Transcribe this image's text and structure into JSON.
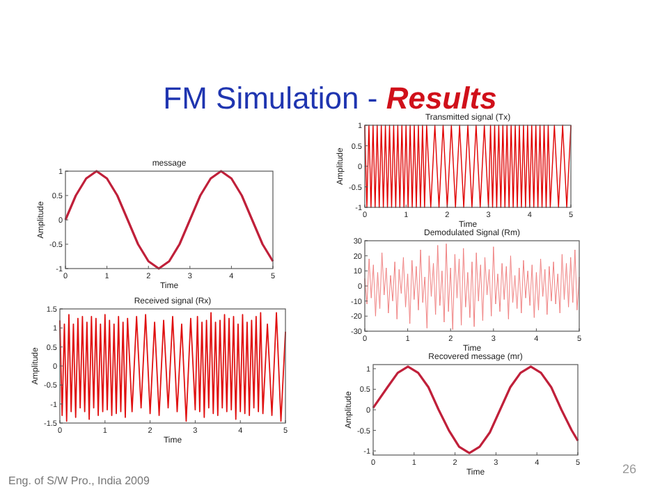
{
  "chart_data": [
    {
      "type": "other",
      "title": "FM Simulation - Results",
      "annotations": [
        "Eng. of S/W Pro., India 2009",
        "26"
      ]
    },
    {
      "type": "line",
      "title": "message",
      "xlabel": "Time",
      "ylabel": "Amplitude",
      "xlim": [
        0,
        5
      ],
      "xticks": [
        0,
        1,
        2,
        3,
        4,
        5
      ],
      "ylim": [
        -1,
        1
      ],
      "yticks": [
        -1,
        -0.5,
        0,
        0.5,
        1
      ],
      "grid": false,
      "x": [
        0,
        0.25,
        0.5,
        0.75,
        1,
        1.25,
        1.5,
        1.75,
        2,
        2.25,
        2.5,
        2.75,
        3,
        3.25,
        3.5,
        3.75,
        4,
        4.25,
        4.5,
        4.75,
        5
      ],
      "series": [
        {
          "color": "#c0203a",
          "values": [
            0,
            0.5,
            0.85,
            1,
            0.85,
            0.5,
            0,
            -0.5,
            -0.85,
            -1,
            -0.85,
            -0.5,
            0,
            0.5,
            0.85,
            1,
            0.85,
            0.5,
            0,
            -0.5,
            -0.85
          ]
        }
      ]
    },
    {
      "type": "line",
      "title": "Received signal (Rx)",
      "xlabel": "Time",
      "ylabel": "Amplitude",
      "xlim": [
        0,
        5
      ],
      "xticks": [
        0,
        1,
        2,
        3,
        4,
        5
      ],
      "ylim": [
        -1.5,
        1.5
      ],
      "yticks": [
        -1.5,
        -1,
        -0.5,
        0,
        0.5,
        1,
        1.5
      ],
      "grid": false,
      "x": [
        0,
        0.05,
        0.1,
        0.15,
        0.2,
        0.25,
        0.3,
        0.35,
        0.4,
        0.45,
        0.5,
        0.55,
        0.6,
        0.65,
        0.7,
        0.75,
        0.8,
        0.85,
        0.9,
        0.95,
        1,
        1.05,
        1.1,
        1.15,
        1.2,
        1.25,
        1.3,
        1.35,
        1.4,
        1.45,
        1.5,
        1.6,
        1.7,
        1.8,
        1.9,
        2,
        2.1,
        2.2,
        2.3,
        2.4,
        2.5,
        2.6,
        2.7,
        2.8,
        2.9,
        3,
        3.05,
        3.1,
        3.15,
        3.2,
        3.25,
        3.3,
        3.35,
        3.4,
        3.45,
        3.5,
        3.55,
        3.6,
        3.65,
        3.7,
        3.75,
        3.8,
        3.85,
        3.9,
        3.95,
        4,
        4.05,
        4.1,
        4.15,
        4.2,
        4.25,
        4.3,
        4.35,
        4.4,
        4.45,
        4.5,
        4.6,
        4.7,
        4.8,
        4.9,
        5
      ],
      "series": [
        {
          "color": "#e01010",
          "values": [
            1.2,
            -1.3,
            1.1,
            -1.45,
            1.35,
            -1.2,
            1.1,
            -1.35,
            1.25,
            -1.1,
            1.3,
            -1.2,
            1.15,
            -1.4,
            1.3,
            -1.1,
            1.25,
            -1.3,
            1.1,
            -1.2,
            1.35,
            -1.15,
            1.2,
            -1.3,
            1.1,
            -1.25,
            1.3,
            -1.2,
            1.15,
            -1.35,
            1.25,
            -1.2,
            1.3,
            -1.1,
            1.35,
            -1.25,
            1.15,
            -1.3,
            1.2,
            -1.1,
            1.3,
            -1.2,
            1.1,
            -1.45,
            1.25,
            -1.15,
            1.3,
            -1.2,
            1.15,
            -1.35,
            1.2,
            -1.1,
            1.4,
            -1.25,
            1.15,
            -1.3,
            1.2,
            -1.1,
            1.35,
            -1.2,
            1.25,
            -1.15,
            1.3,
            -1.4,
            1.1,
            -1.2,
            1.35,
            -1.25,
            1.15,
            -1.3,
            1.2,
            -1.1,
            1.3,
            -1.2,
            1.4,
            -1.25,
            1.1,
            -1.3,
            1.4,
            -1.45,
            0.9
          ]
        }
      ]
    },
    {
      "type": "line",
      "title": "Transmitted signal (Tx)",
      "xlabel": "Time",
      "ylabel": "Amplitude",
      "xlim": [
        0,
        5
      ],
      "xticks": [
        0,
        1,
        2,
        3,
        4,
        5
      ],
      "ylim": [
        -1,
        1
      ],
      "yticks": [
        -1,
        -0.5,
        0,
        0.5,
        1
      ],
      "grid": false,
      "x": [
        0,
        0.05,
        0.1,
        0.15,
        0.2,
        0.25,
        0.3,
        0.35,
        0.4,
        0.45,
        0.5,
        0.55,
        0.6,
        0.65,
        0.7,
        0.75,
        0.8,
        0.85,
        0.9,
        0.95,
        1,
        1.05,
        1.1,
        1.15,
        1.2,
        1.25,
        1.3,
        1.35,
        1.4,
        1.45,
        1.5,
        1.6,
        1.7,
        1.8,
        1.9,
        2,
        2.1,
        2.2,
        2.3,
        2.4,
        2.5,
        2.6,
        2.7,
        2.8,
        2.9,
        3,
        3.05,
        3.1,
        3.15,
        3.2,
        3.25,
        3.3,
        3.35,
        3.4,
        3.45,
        3.5,
        3.55,
        3.6,
        3.65,
        3.7,
        3.75,
        3.8,
        3.85,
        3.9,
        3.95,
        4,
        4.05,
        4.1,
        4.15,
        4.2,
        4.25,
        4.3,
        4.35,
        4.4,
        4.45,
        4.5,
        4.6,
        4.7,
        4.8,
        4.9,
        5
      ],
      "series": [
        {
          "color": "#e00000",
          "values": [
            1,
            -1,
            1,
            -1,
            1,
            -1,
            1,
            -1,
            1,
            -1,
            1,
            -1,
            1,
            -1,
            1,
            -1,
            1,
            -1,
            1,
            -1,
            1,
            -1,
            1,
            -1,
            1,
            -1,
            1,
            -1,
            1,
            -1,
            1,
            -1,
            1,
            -1,
            1,
            -1,
            1,
            -1,
            1,
            -1,
            1,
            -1,
            1,
            -1,
            1,
            -1,
            1,
            -1,
            1,
            -1,
            1,
            -1,
            1,
            -1,
            1,
            -1,
            1,
            -1,
            1,
            -1,
            1,
            -1,
            1,
            -1,
            1,
            -1,
            1,
            -1,
            1,
            -1,
            1,
            -1,
            1,
            -1,
            1,
            -1,
            1,
            -1,
            1,
            -1,
            1
          ]
        }
      ]
    },
    {
      "type": "line",
      "title": "Demodulated Signal (Rm)",
      "xlabel": "Time",
      "xlim": [
        0,
        5
      ],
      "xticks": [
        0,
        1,
        2,
        3,
        4,
        5
      ],
      "ylim": [
        -30,
        30
      ],
      "yticks": [
        -30,
        -20,
        -10,
        0,
        10,
        20,
        30
      ],
      "grid": false,
      "x": [
        0,
        0.05,
        0.1,
        0.15,
        0.2,
        0.25,
        0.3,
        0.35,
        0.4,
        0.45,
        0.5,
        0.55,
        0.6,
        0.65,
        0.7,
        0.75,
        0.8,
        0.85,
        0.9,
        0.95,
        1,
        1.05,
        1.1,
        1.15,
        1.2,
        1.25,
        1.3,
        1.35,
        1.4,
        1.45,
        1.5,
        1.55,
        1.6,
        1.65,
        1.7,
        1.75,
        1.8,
        1.85,
        1.9,
        1.95,
        2,
        2.05,
        2.1,
        2.15,
        2.2,
        2.25,
        2.3,
        2.35,
        2.4,
        2.45,
        2.5,
        2.55,
        2.6,
        2.65,
        2.7,
        2.75,
        2.8,
        2.85,
        2.9,
        2.95,
        3,
        3.05,
        3.1,
        3.15,
        3.2,
        3.25,
        3.3,
        3.35,
        3.4,
        3.45,
        3.5,
        3.55,
        3.6,
        3.65,
        3.7,
        3.75,
        3.8,
        3.85,
        3.9,
        3.95,
        4,
        4.05,
        4.1,
        4.15,
        4.2,
        4.25,
        4.3,
        4.35,
        4.4,
        4.45,
        4.5,
        4.55,
        4.6,
        4.65,
        4.7,
        4.75,
        4.8,
        4.85,
        4.9,
        4.95,
        5
      ],
      "series": [
        {
          "color": "#f08080",
          "values": [
            5,
            -12,
            18,
            -8,
            14,
            -20,
            9,
            -15,
            22,
            -6,
            12,
            -18,
            7,
            -10,
            16,
            -22,
            11,
            -5,
            19,
            -14,
            8,
            -25,
            17,
            -9,
            13,
            -16,
            24,
            -11,
            6,
            -28,
            20,
            -7,
            15,
            -19,
            27,
            -13,
            10,
            -24,
            28,
            -17,
            12,
            -29,
            21,
            -8,
            18,
            -26,
            25,
            -14,
            9,
            -21,
            16,
            -27,
            22,
            -10,
            14,
            -23,
            19,
            -6,
            11,
            -20,
            26,
            -12,
            8,
            -17,
            15,
            -9,
            13,
            -22,
            20,
            -11,
            7,
            -15,
            12,
            -18,
            17,
            -8,
            10,
            -13,
            14,
            -21,
            9,
            -16,
            18,
            -7,
            11,
            -19,
            13,
            -10,
            16,
            -12,
            8,
            -18,
            21,
            -9,
            15,
            -14,
            19,
            -11,
            24,
            -16,
            6
          ]
        }
      ]
    },
    {
      "type": "line",
      "title": "Recovered message (mr)",
      "xlabel": "Time",
      "ylabel": "Amplitude",
      "xlim": [
        0,
        5
      ],
      "xticks": [
        0,
        1,
        2,
        3,
        4,
        5
      ],
      "ylim": [
        -1.1,
        1.1
      ],
      "yticks": [
        -1,
        -0.5,
        0,
        0.5,
        1
      ],
      "grid": false,
      "x": [
        0,
        0.35,
        0.6,
        0.85,
        1.1,
        1.35,
        1.6,
        1.85,
        2.1,
        2.35,
        2.6,
        2.85,
        3.1,
        3.35,
        3.6,
        3.85,
        4.1,
        4.35,
        4.6,
        4.85,
        5
      ],
      "series": [
        {
          "color": "#c0203a",
          "values": [
            0.05,
            0.55,
            0.9,
            1.05,
            0.9,
            0.55,
            0,
            -0.5,
            -0.9,
            -1.05,
            -0.9,
            -0.55,
            0,
            0.55,
            0.9,
            1.05,
            0.9,
            0.55,
            0,
            -0.5,
            -0.75
          ]
        }
      ]
    }
  ]
}
